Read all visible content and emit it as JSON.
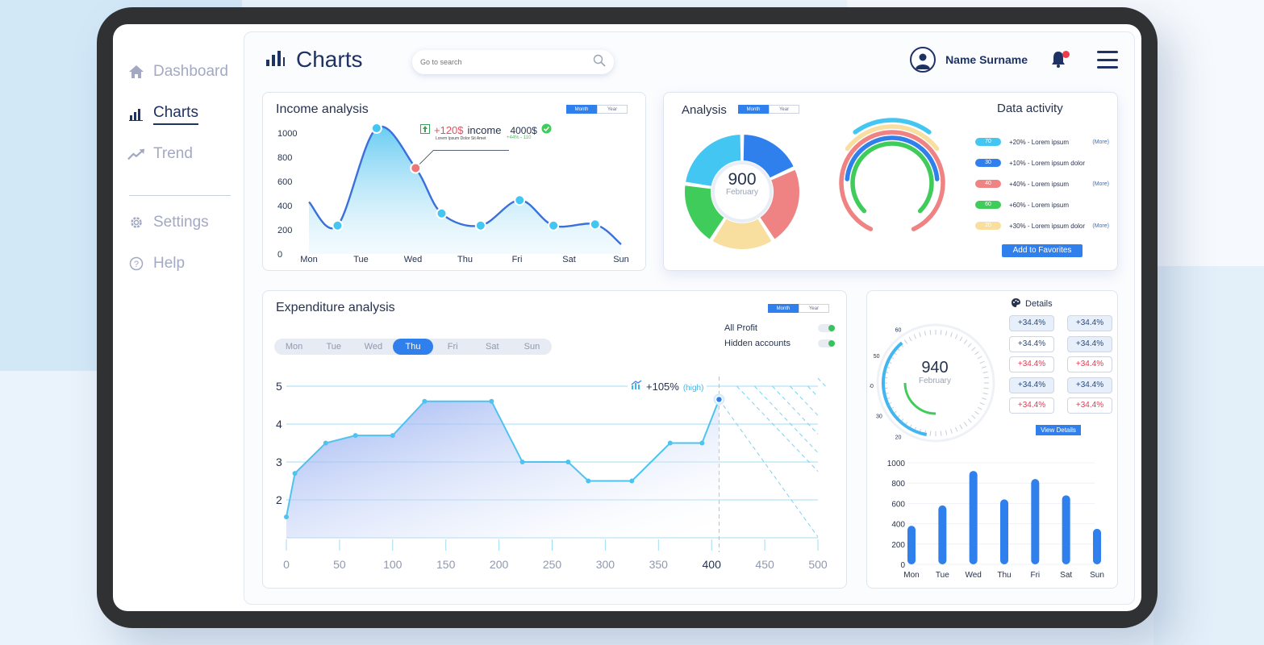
{
  "sidebar": {
    "items": [
      {
        "label": "Dashboard",
        "icon": "home-icon"
      },
      {
        "label": "Charts",
        "icon": "bar-chart-icon"
      },
      {
        "label": "Trend",
        "icon": "trend-icon"
      },
      {
        "label": "Settings",
        "icon": "gear-icon"
      },
      {
        "label": "Help",
        "icon": "help-icon"
      }
    ]
  },
  "header": {
    "title": "Charts",
    "search_placeholder": "Go to search",
    "user_name": "Name Surname"
  },
  "income": {
    "title": "Income analysis",
    "toggle": [
      "Month",
      "Year"
    ],
    "callout": {
      "value": "+120$",
      "label": "income",
      "subtitle": "Lorem Ipsum Dolor Sit Amet",
      "total": "4000$",
      "delta": "+44% - 110"
    }
  },
  "analysis": {
    "title": "Analysis",
    "toggle": [
      "Month",
      "Year"
    ],
    "donut_value": "900",
    "donut_label": "February",
    "data_activity_title": "Data activity",
    "legend": [
      {
        "value": "70",
        "text": "+20% - Lorem ipsum",
        "more": "(More)",
        "color": "#43c6f2"
      },
      {
        "value": "30",
        "text": "+10% - Lorem ipsum dolor",
        "more": "",
        "color": "#2f80ed"
      },
      {
        "value": "40",
        "text": "+40% - Lorem ipsum",
        "more": "(More)",
        "color": "#ef8383"
      },
      {
        "value": "60",
        "text": "+60% - Lorem ipsum",
        "more": "",
        "color": "#3fcc5a"
      },
      {
        "value": "20",
        "text": "+30% - Lorem ipsum dolor",
        "more": "(More)",
        "color": "#f8df9f"
      }
    ],
    "add_button": "Add to Favorites"
  },
  "expenditure": {
    "title": "Expenditure analysis",
    "toggle": [
      "Month",
      "Year"
    ],
    "days": [
      "Mon",
      "Tue",
      "Wed",
      "Thu",
      "Fri",
      "Sat",
      "Sun"
    ],
    "active_day": "Thu",
    "switches": [
      {
        "label": "All Profit"
      },
      {
        "label": "Hidden accounts"
      }
    ],
    "callout": {
      "value": "+105%",
      "label": "(high)"
    }
  },
  "details": {
    "title": "Details",
    "gauge_value": "940",
    "gauge_label": "February",
    "gauge_ticks": [
      "60",
      "50",
      "40",
      "30",
      "20",
      "10"
    ],
    "chips": [
      [
        "+34.4%",
        "+34.4%"
      ],
      [
        "+34.4%",
        "+34.4%"
      ],
      [
        "+34.4%",
        "+34.4%"
      ],
      [
        "+34.4%",
        "+34.4%"
      ],
      [
        "+34.4%",
        "+34.4%"
      ]
    ],
    "view_button": "View Details"
  },
  "chart_data": [
    {
      "type": "area",
      "title": "Income analysis",
      "x": [
        "Mon",
        "Tue",
        "Wed",
        "Thu",
        "Fri",
        "Sat",
        "Sun"
      ],
      "y_ticks": [
        0,
        200,
        400,
        600,
        800,
        1000
      ],
      "ylim": [
        0,
        1000
      ],
      "series": [
        {
          "points": [
            [
              0,
              430
            ],
            [
              0.55,
              235
            ],
            [
              1.3,
              1040
            ],
            [
              2.05,
              710
            ],
            [
              2.55,
              335
            ],
            [
              3.3,
              235
            ],
            [
              4.05,
              445
            ],
            [
              4.7,
              235
            ],
            [
              5.5,
              245
            ],
            [
              6.0,
              80
            ]
          ]
        }
      ],
      "color": "#3a6fdc"
    },
    {
      "type": "area",
      "title": "Expenditure analysis",
      "x_ticks": [
        0,
        50,
        100,
        150,
        200,
        250,
        300,
        350,
        400,
        450,
        500
      ],
      "y_ticks": [
        2,
        3,
        4,
        5
      ],
      "xlim": [
        0,
        500
      ],
      "ylim": [
        1,
        5
      ],
      "series": [
        {
          "points": [
            [
              0,
              1.55
            ],
            [
              8,
              2.7
            ],
            [
              37,
              3.5
            ],
            [
              65,
              3.7
            ],
            [
              100,
              3.7
            ],
            [
              130,
              4.6
            ],
            [
              193,
              4.6
            ],
            [
              222,
              3.0
            ],
            [
              265,
              3.0
            ],
            [
              284,
              2.5
            ],
            [
              325,
              2.5
            ],
            [
              361,
              3.5
            ],
            [
              391,
              3.5
            ],
            [
              407,
              4.65
            ]
          ]
        }
      ],
      "color": "#4fc3f0"
    },
    {
      "type": "pie",
      "title": "Analysis",
      "values": [
        20,
        25,
        20,
        20,
        25
      ],
      "colors": [
        "#2f80ed",
        "#ef8383",
        "#f8df9f",
        "#3fcc5a",
        "#43c6f2"
      ]
    },
    {
      "type": "bar",
      "categories": [
        "Mon",
        "Tue",
        "Wed",
        "Thu",
        "Fri",
        "Sat",
        "Sun"
      ],
      "values": [
        380,
        580,
        920,
        640,
        840,
        680,
        350
      ],
      "ylim": [
        0,
        1000
      ],
      "y_ticks": [
        0,
        200,
        400,
        600,
        800,
        1000
      ],
      "color": "#2f80ed"
    }
  ]
}
